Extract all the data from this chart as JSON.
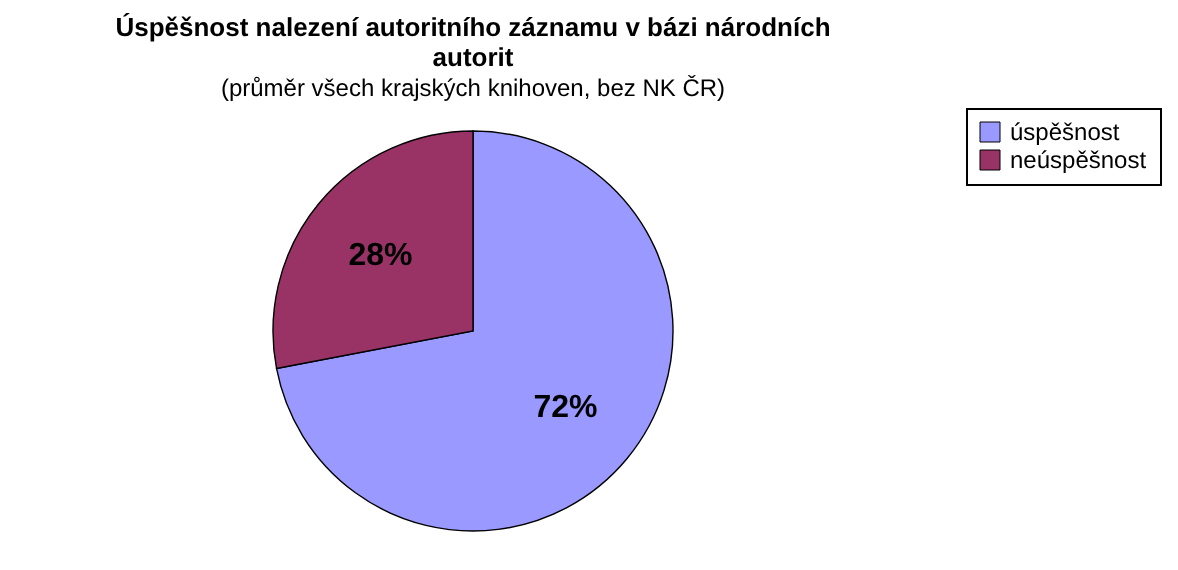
{
  "chart_data": {
    "type": "pie",
    "title": "Úspěšnost nalezení autoritního záznamu v bázi národních autorit",
    "subtitle": "(průměr všech krajských knihoven, bez NK ČR)",
    "categories": [
      "úspěšnost",
      "neúspěšnost"
    ],
    "values": [
      72,
      28
    ],
    "colors": [
      "#9999ff",
      "#993366"
    ],
    "value_labels": [
      "72%",
      "28%"
    ],
    "legend": "right"
  }
}
